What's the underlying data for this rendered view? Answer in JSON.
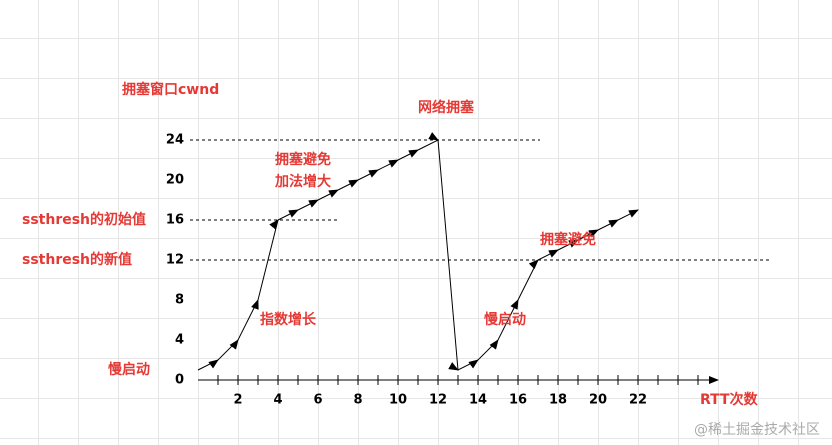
{
  "chart_data": {
    "type": "line",
    "ylabel": "拥塞窗口cwnd",
    "xlabel": "RTT次数",
    "x": [
      0,
      1,
      2,
      3,
      4,
      5,
      6,
      7,
      8,
      9,
      10,
      11,
      12,
      13,
      14,
      15,
      16,
      17,
      18,
      19,
      20,
      21,
      22
    ],
    "series": [
      {
        "color": "#000000",
        "values": [
          1,
          2,
          4,
          8,
          16,
          17,
          18,
          19,
          20,
          21,
          22,
          23,
          24,
          1,
          2,
          4,
          8,
          12,
          13,
          14,
          15,
          16,
          17
        ]
      }
    ],
    "xlim": [
      0,
      26
    ],
    "ylim": [
      0,
      24
    ],
    "xticks": [
      2,
      4,
      6,
      8,
      10,
      12,
      14,
      16,
      18,
      20,
      22
    ],
    "yticks": [
      0,
      4,
      8,
      12,
      16,
      20,
      24
    ],
    "reference_lines": [
      24,
      16,
      12
    ],
    "annotations": [
      "网络拥塞",
      "拥塞避免",
      "加法增大",
      "ssthresh的初始值",
      "ssthresh的新值",
      "指数增长",
      "慢启动",
      "慢启动",
      "拥塞避免"
    ],
    "watermark": "@稀土掘金技术社区"
  }
}
